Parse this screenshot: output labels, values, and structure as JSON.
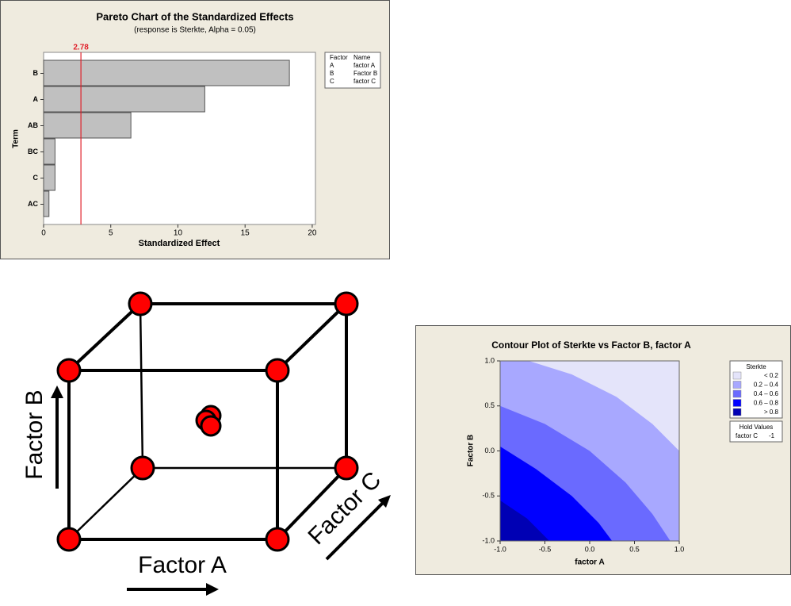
{
  "chart_data": [
    {
      "type": "barh",
      "title": "Pareto Chart of the Standardized Effects",
      "subtitle": "(response is Sterkte, Alpha = 0.05)",
      "xlabel": "Standardized Effect",
      "ylabel": "Term",
      "categories": [
        "B",
        "A",
        "AB",
        "BC",
        "C",
        "AC"
      ],
      "values": [
        18.3,
        12.0,
        6.5,
        0.85,
        0.85,
        0.4
      ],
      "color": "#c0c0c0",
      "xlim": [
        0,
        20.24
      ],
      "xticks": [
        0,
        5,
        10,
        15,
        20
      ],
      "reference": {
        "value": 2.78,
        "label": "2.78",
        "color": "#e0202a"
      },
      "legend": {
        "headers": [
          "Factor",
          "Name"
        ],
        "rows": [
          [
            "A",
            "factor A"
          ],
          [
            "B",
            "Factor B"
          ],
          [
            "C",
            "factor C"
          ]
        ]
      }
    },
    {
      "type": "contour",
      "title": "Contour Plot of Sterkte vs Factor B, factor A",
      "xlabel": "factor A",
      "ylabel": "Factor B",
      "xlim": [
        -1,
        1
      ],
      "ylim": [
        -1,
        1
      ],
      "xticks": [
        {
          "value": -1,
          "label": "-1.0"
        },
        -0.5,
        {
          "value": 0,
          "label": "0.0"
        },
        0.5,
        {
          "value": 1,
          "label": "1.0"
        }
      ],
      "yticks": [
        {
          "value": -1,
          "label": "-1.0"
        },
        -0.5,
        {
          "value": 0,
          "label": "0.0"
        },
        0.5,
        {
          "value": 1,
          "label": "1.0"
        }
      ],
      "legend_title": "Sterkte",
      "legend_labels": [
        "<  0.2",
        "0.2 –  0.4",
        "0.4 –  0.6",
        "0.6 –  0.8",
        ">  0.8"
      ],
      "colors": [
        "#e4e4fa",
        "#a8a8ff",
        "#6a6aff",
        "#0000ff",
        "#0000b4"
      ],
      "contours": [
        {
          "level": 0.8,
          "x": [
            -1,
            -0.7,
            -0.45
          ],
          "y": [
            -0.55,
            -0.75,
            -1
          ]
        },
        {
          "level": 0.6,
          "x": [
            -1,
            -0.6,
            -0.2,
            0.1,
            0.25
          ],
          "y": [
            0.05,
            -0.2,
            -0.5,
            -0.8,
            -1
          ]
        },
        {
          "level": 0.4,
          "x": [
            -1,
            -0.5,
            0,
            0.4,
            0.7,
            0.9
          ],
          "y": [
            0.5,
            0.3,
            0,
            -0.35,
            -0.7,
            -1
          ]
        },
        {
          "level": 0.2,
          "x": [
            -0.68,
            -0.2,
            0.3,
            0.7,
            1
          ],
          "y": [
            1,
            0.85,
            0.6,
            0.3,
            0
          ]
        }
      ],
      "hold_title": "Hold Values",
      "hold_factor": "factor C",
      "hold_value": -1
    }
  ],
  "diagram": {
    "labels": [
      "Factor A",
      "Factor B",
      "Factor C"
    ]
  }
}
